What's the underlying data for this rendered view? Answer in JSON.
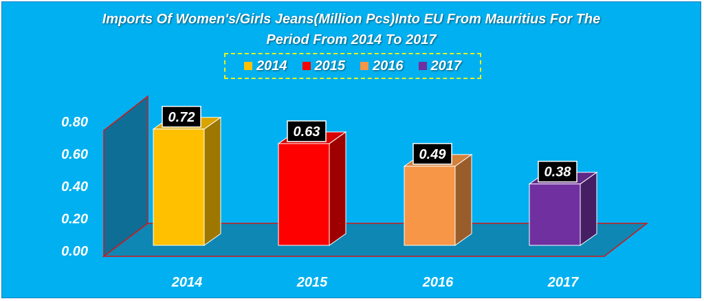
{
  "chart_data": {
    "type": "bar",
    "title_lines": [
      "Imports Of Women's/Girls Jeans(Million Pcs)Into EU From Mauritius For The",
      "Period From 2014 To 2017"
    ],
    "categories": [
      "2014",
      "2015",
      "2016",
      "2017"
    ],
    "values": [
      0.72,
      0.63,
      0.49,
      0.38
    ],
    "data_labels": [
      "0.72",
      "0.63",
      "0.49",
      "0.38"
    ],
    "colors": [
      "#FFC000",
      "#FF0000",
      "#F79646",
      "#7030A0"
    ],
    "legend": {
      "placement": "top-center",
      "entries": [
        "2014",
        "2015",
        "2016",
        "2017"
      ]
    },
    "yticks": [
      "0.00",
      "0.20",
      "0.40",
      "0.60",
      "0.80"
    ],
    "ylim": [
      0,
      0.8
    ],
    "grid": false,
    "xlabel": "",
    "ylabel": ""
  }
}
